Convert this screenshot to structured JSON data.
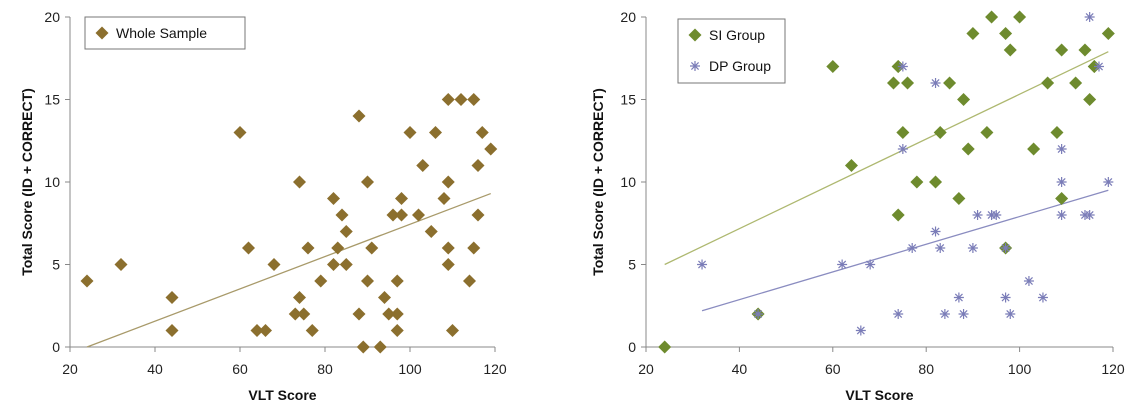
{
  "chart_data": [
    {
      "type": "scatter",
      "title": "",
      "xlabel": "VLT Score",
      "ylabel": "Total Score (ID + CORRECT)",
      "xlim": [
        20,
        120
      ],
      "ylim": [
        0,
        20
      ],
      "xticks": [
        "20",
        "40",
        "60",
        "80",
        "100",
        "120"
      ],
      "yticks": [
        "0",
        "5",
        "10",
        "15",
        "20"
      ],
      "grid": false,
      "legend": "top-left",
      "series": [
        {
          "name": "Whole Sample",
          "marker": "diamond",
          "color": "#8B6F2E",
          "x": [
            24,
            32,
            44,
            44,
            60,
            62,
            64,
            66,
            68,
            73,
            74,
            74,
            75,
            76,
            77,
            79,
            82,
            82,
            83,
            84,
            85,
            85,
            88,
            88,
            89,
            90,
            90,
            91,
            93,
            94,
            95,
            96,
            97,
            97,
            97,
            98,
            98,
            100,
            102,
            103,
            105,
            106,
            108,
            109,
            109,
            109,
            109,
            112,
            114,
            115,
            115,
            116,
            116,
            117,
            119,
            110
          ],
          "y": [
            4,
            5,
            3,
            1,
            13,
            6,
            1,
            1,
            5,
            2,
            10,
            3,
            2,
            6,
            1,
            4,
            9,
            5,
            6,
            8,
            7,
            5,
            14,
            2,
            0,
            10,
            4,
            6,
            0,
            3,
            2,
            8,
            4,
            1,
            2,
            9,
            8,
            13,
            8,
            11,
            7,
            13,
            9,
            15,
            10,
            6,
            5,
            15,
            4,
            15,
            6,
            11,
            8,
            13,
            12,
            1
          ]
        }
      ],
      "trendlines": [
        {
          "x": [
            24,
            119
          ],
          "y": [
            0,
            9.3
          ],
          "color": "#A89A6A"
        }
      ]
    },
    {
      "type": "scatter",
      "title": "",
      "xlabel": "VLT Score",
      "ylabel": "Total Score (ID + CORRECT)",
      "xlim": [
        20,
        120
      ],
      "ylim": [
        0,
        20
      ],
      "xticks": [
        "20",
        "40",
        "60",
        "80",
        "100",
        "120"
      ],
      "yticks": [
        "0",
        "5",
        "10",
        "15",
        "20"
      ],
      "grid": false,
      "legend": "top-left",
      "series": [
        {
          "name": "SI Group",
          "marker": "diamond",
          "color": "#6E8B2E",
          "x": [
            24,
            44,
            60,
            64,
            73,
            74,
            74,
            75,
            76,
            78,
            82,
            83,
            85,
            87,
            88,
            89,
            90,
            93,
            94,
            97,
            97,
            98,
            100,
            103,
            106,
            108,
            109,
            109,
            112,
            114,
            115,
            116,
            116,
            119,
            74
          ],
          "y": [
            0,
            2,
            17,
            11,
            16,
            17,
            8,
            13,
            16,
            10,
            10,
            13,
            16,
            9,
            15,
            12,
            19,
            13,
            20,
            19,
            6,
            18,
            20,
            12,
            16,
            13,
            18,
            9,
            16,
            18,
            15,
            17,
            17,
            19,
            17
          ]
        },
        {
          "name": "DP Group",
          "marker": "asterisk",
          "color": "#7B7DB8",
          "x": [
            32,
            44,
            62,
            66,
            68,
            74,
            75,
            75,
            77,
            82,
            82,
            83,
            84,
            87,
            88,
            90,
            91,
            94,
            95,
            97,
            97,
            98,
            102,
            105,
            109,
            109,
            109,
            114,
            115,
            115,
            117,
            119
          ],
          "y": [
            5,
            2,
            5,
            1,
            5,
            2,
            17,
            12,
            6,
            16,
            7,
            6,
            2,
            3,
            2,
            6,
            8,
            8,
            8,
            6,
            3,
            2,
            4,
            3,
            12,
            10,
            8,
            8,
            8,
            20,
            17,
            10
          ]
        }
      ],
      "trendlines": [
        {
          "x": [
            24,
            119
          ],
          "y": [
            5.0,
            17.9
          ],
          "color": "#AEB870"
        },
        {
          "x": [
            32,
            119
          ],
          "y": [
            2.2,
            9.5
          ],
          "color": "#8A8CC0"
        }
      ]
    }
  ]
}
